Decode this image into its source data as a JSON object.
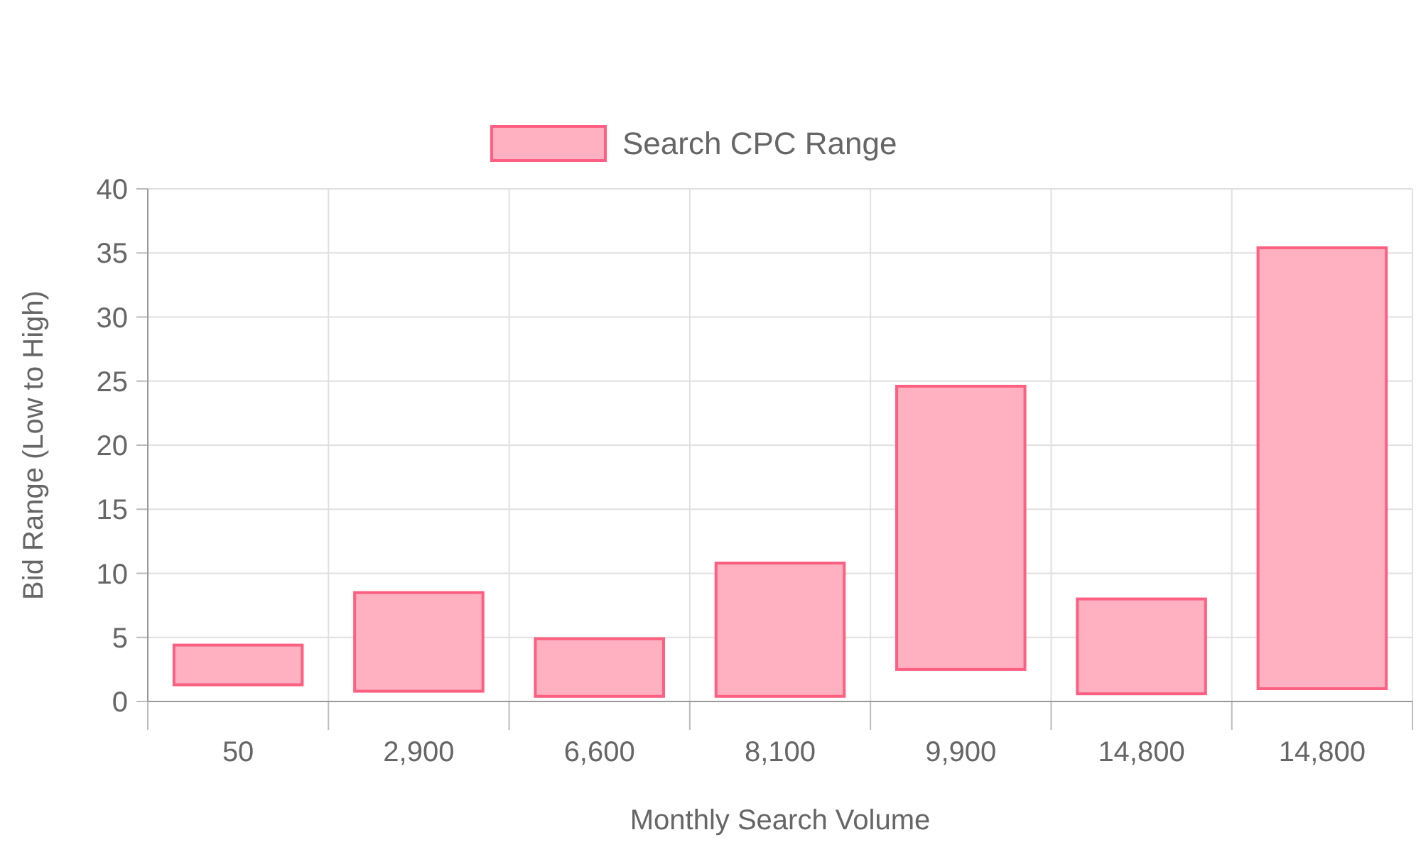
{
  "chart_data": {
    "type": "bar",
    "xlabel": "Monthly Search Volume",
    "ylabel": "Bid Range (Low to High)",
    "categories": [
      "50",
      "2,900",
      "6,600",
      "8,100",
      "9,900",
      "14,800",
      "14,800"
    ],
    "series": [
      {
        "name": "Search CPC Range",
        "color": "#ffb1c1",
        "values": [
          3.1,
          7.7,
          4.5,
          10.4,
          22.1,
          7.4,
          34.4
        ],
        "base": [
          1.3,
          0.8,
          0.4,
          0.4,
          2.5,
          0.6,
          1.0
        ]
      }
    ],
    "ylim": [
      0,
      40
    ],
    "yticks": [
      0,
      5,
      10,
      15,
      20,
      25,
      30,
      35,
      40
    ],
    "grid": true,
    "legend": "top"
  }
}
